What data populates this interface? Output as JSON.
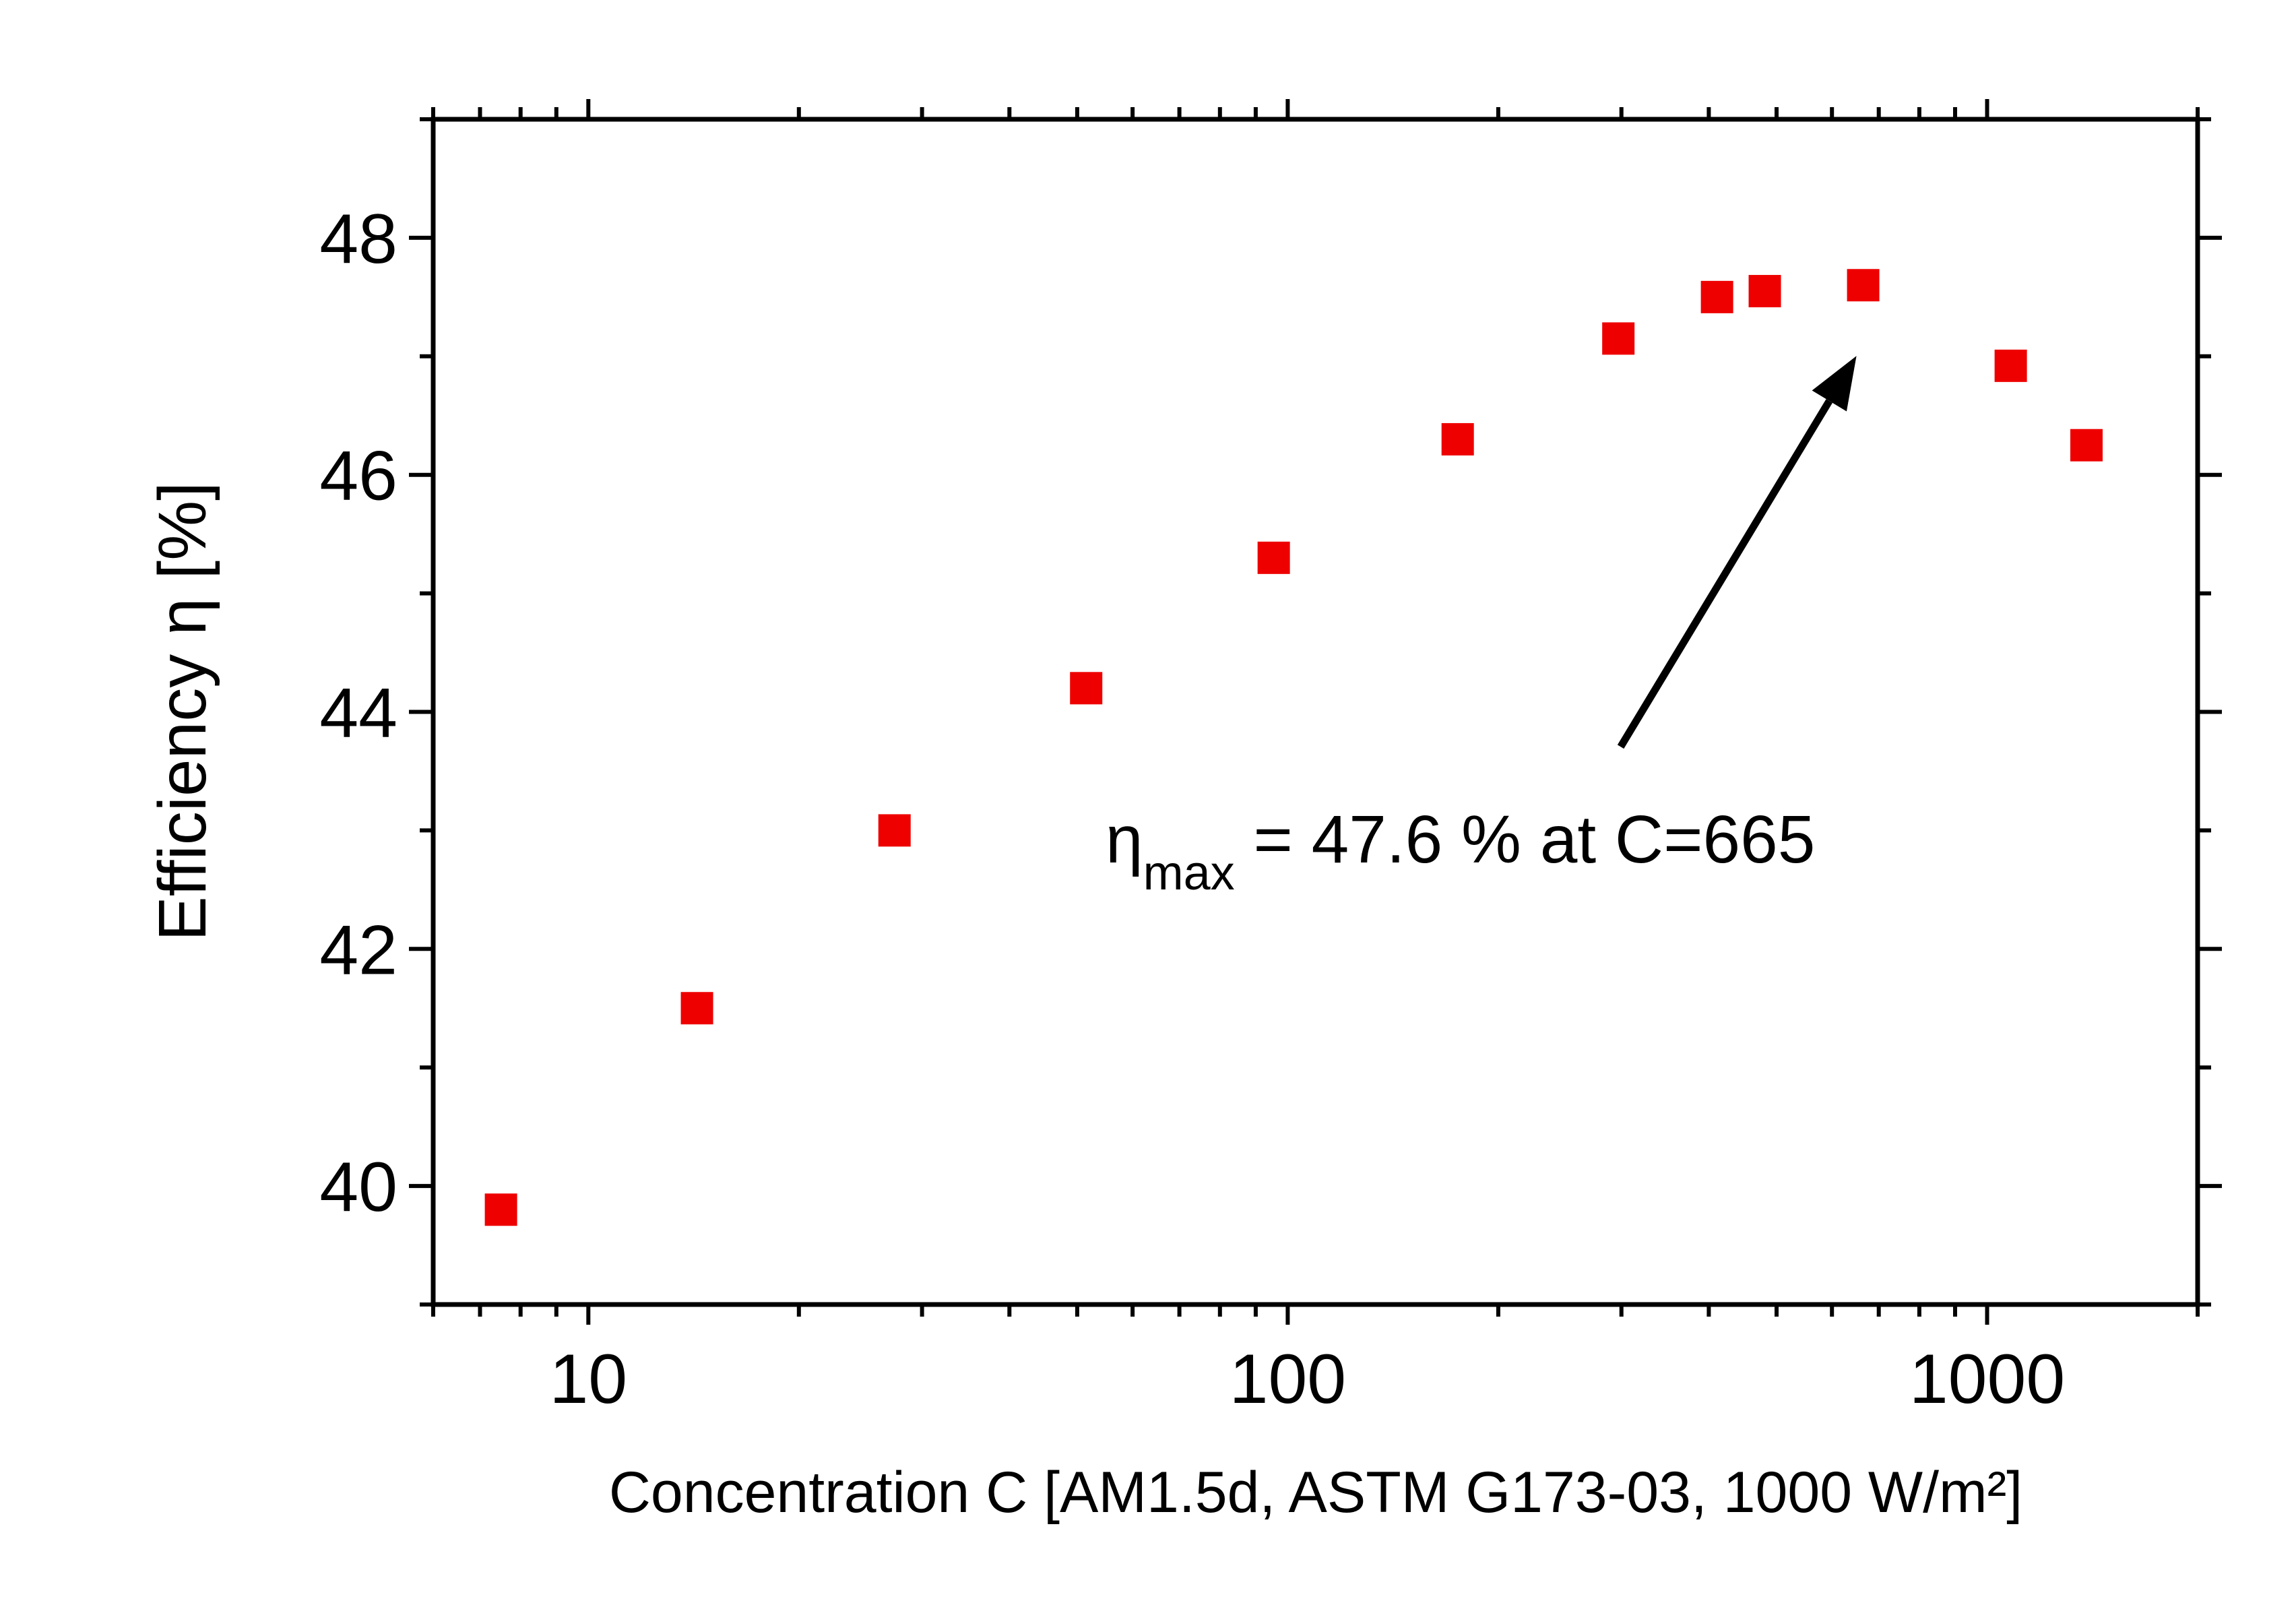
{
  "chart_data": {
    "type": "scatter",
    "xlabel": "Concentration C [AM1.5d, ASTM G173-03, 1000 W/m²]",
    "ylabel": "Efficiency η [%]",
    "xscale": "log",
    "xlim": [
      6,
      2000
    ],
    "ylim": [
      39,
      49
    ],
    "x_ticks": [
      10,
      100,
      1000
    ],
    "x_tick_labels": [
      "10",
      "100",
      "1000"
    ],
    "y_ticks": [
      40,
      42,
      44,
      46,
      48
    ],
    "y_tick_labels": [
      "40",
      "42",
      "44",
      "46",
      "48"
    ],
    "grid": false,
    "marker": "square",
    "series": [
      {
        "color": "#ee0000",
        "points": [
          {
            "x": 7.5,
            "y": 39.8
          },
          {
            "x": 14.3,
            "y": 41.5
          },
          {
            "x": 27.4,
            "y": 43.0
          },
          {
            "x": 51.5,
            "y": 44.2
          },
          {
            "x": 95.5,
            "y": 45.3
          },
          {
            "x": 175,
            "y": 46.3
          },
          {
            "x": 297,
            "y": 47.15
          },
          {
            "x": 411,
            "y": 47.5
          },
          {
            "x": 481,
            "y": 47.55
          },
          {
            "x": 665,
            "y": 47.6
          },
          {
            "x": 1081,
            "y": 46.92
          },
          {
            "x": 1387,
            "y": 46.25
          }
        ]
      }
    ],
    "annotation": {
      "symbol": "η",
      "subscript": "max",
      "text": " = 47.6 % at C=665",
      "arrow_to": {
        "x": 665,
        "y": 47.6
      }
    }
  }
}
